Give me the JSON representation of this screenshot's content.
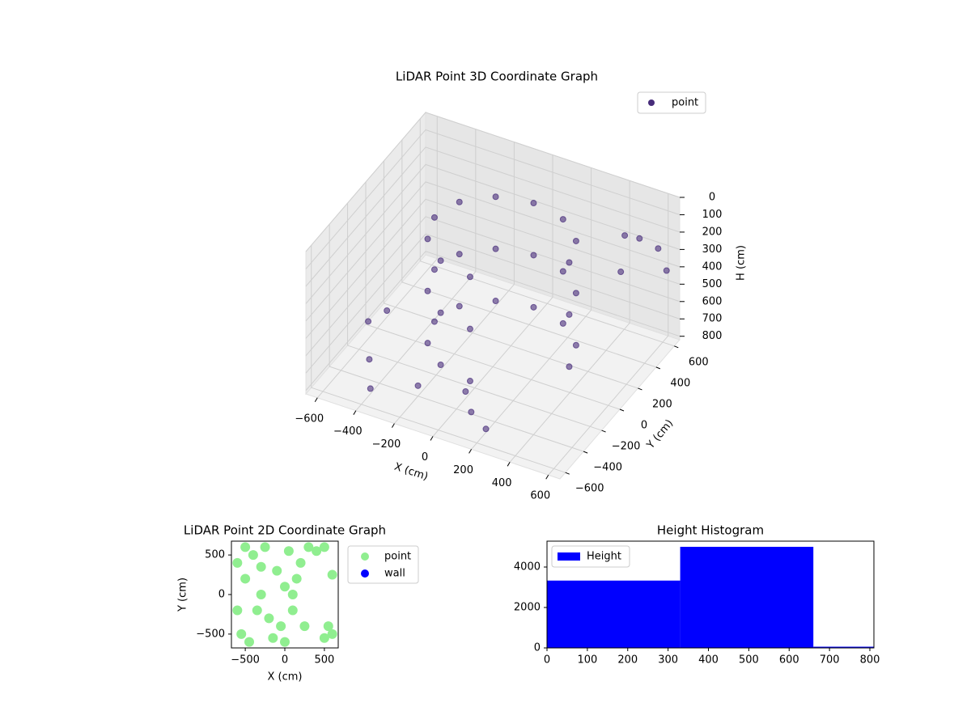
{
  "chart_data": [
    {
      "type": "scatter3d",
      "title": "LiDAR Point 3D Coordinate Graph",
      "xlabel": "X (cm)",
      "ylabel": "Y (cm)",
      "zlabel": "H (cm)",
      "xlim": [
        -660,
        660
      ],
      "ylim": [
        -660,
        660
      ],
      "zlim": [
        0,
        820
      ],
      "zinverted": true,
      "grid": true,
      "legend": "upper right",
      "xticks": [
        {
          "value": -600,
          "label": "−600"
        },
        {
          "value": -400,
          "label": "−400"
        },
        {
          "value": -200,
          "label": "−200"
        },
        0,
        200,
        400,
        600
      ],
      "yticks": [
        {
          "value": -600,
          "label": "−600"
        },
        {
          "value": -400,
          "label": "−400"
        },
        {
          "value": -200,
          "label": "−200"
        },
        0,
        200,
        400,
        600
      ],
      "zticks": [
        0,
        100,
        200,
        300,
        400,
        500,
        600,
        700,
        800
      ],
      "series": [
        {
          "name": "point",
          "color": "#472c7a",
          "x": [
            350,
            303,
            175,
            0,
            -175,
            -303,
            -350,
            -303,
            -175,
            0,
            350,
            303,
            175,
            0,
            -175,
            -303,
            -350,
            -303,
            -175,
            0,
            350,
            303,
            175,
            0,
            -175,
            -303,
            -350,
            -303,
            -175,
            0,
            550,
            600,
            500,
            620,
            450,
            -500,
            -400,
            -200,
            0,
            200,
            -600,
            -550,
            100
          ],
          "y": [
            100,
            275,
            403,
            450,
            403,
            275,
            100,
            -75,
            -203,
            -250,
            100,
            275,
            403,
            450,
            403,
            275,
            100,
            -75,
            -203,
            -250,
            100,
            275,
            403,
            450,
            403,
            275,
            100,
            -75,
            -203,
            -250,
            450,
            550,
            350,
            600,
            500,
            -300,
            -500,
            -400,
            -300,
            -500,
            -100,
            0,
            -450
          ],
          "z": [
            150,
            150,
            150,
            150,
            150,
            150,
            150,
            150,
            150,
            150,
            450,
            450,
            450,
            450,
            450,
            450,
            450,
            450,
            450,
            450,
            750,
            750,
            750,
            750,
            750,
            750,
            750,
            750,
            750,
            750,
            150,
            250,
            300,
            400,
            200,
            780,
            790,
            760,
            780,
            800,
            720,
            700,
            770
          ]
        }
      ]
    },
    {
      "type": "scatter",
      "title": "LiDAR Point 2D Coordinate Graph",
      "xlabel": "X (cm)",
      "ylabel": "Y (cm)",
      "xlim": [
        -675,
        675
      ],
      "ylim": [
        -675,
        675
      ],
      "legend": "outside right",
      "xticks": [
        {
          "value": -500,
          "label": "−500"
        },
        0,
        500
      ],
      "yticks": [
        {
          "value": -500,
          "label": "−500"
        },
        0,
        500
      ],
      "series": [
        {
          "name": "point",
          "color": "#90ee90",
          "x": [
            -600,
            -500,
            -400,
            -300,
            -200,
            -100,
            0,
            100,
            200,
            -550,
            -450,
            -350,
            -250,
            -150,
            -50,
            50,
            150,
            250,
            300,
            400,
            500,
            550,
            600,
            500,
            -600,
            0,
            -300,
            100,
            -500,
            600
          ],
          "y": [
            400,
            200,
            500,
            0,
            -300,
            300,
            100,
            -200,
            400,
            -500,
            -600,
            -200,
            600,
            -550,
            -400,
            550,
            200,
            -400,
            600,
            550,
            600,
            -400,
            -500,
            -550,
            -200,
            -600,
            350,
            0,
            600,
            250
          ]
        },
        {
          "name": "wall",
          "color": "#0000ff",
          "x": [],
          "y": []
        }
      ]
    },
    {
      "type": "histogram",
      "title": "Height Histogram",
      "name": "Height",
      "color": "#0000ff",
      "legend": "upper left",
      "bins": [
        0,
        330,
        660,
        810
      ],
      "values": [
        3330,
        5000,
        60
      ],
      "xlim": [
        0,
        810
      ],
      "ylim": [
        0,
        5280
      ],
      "xticks": [
        0,
        100,
        200,
        300,
        400,
        500,
        600,
        700,
        800
      ],
      "yticks": [
        0,
        2000,
        4000
      ]
    }
  ]
}
